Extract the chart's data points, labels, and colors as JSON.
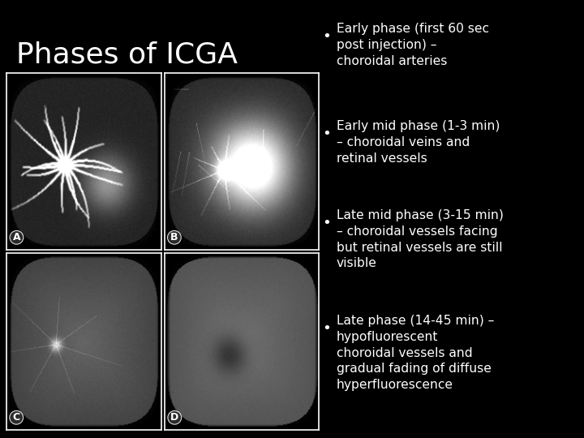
{
  "background_color": "#000000",
  "title": "Phases of ICGA",
  "title_color": "#ffffff",
  "title_fontsize": 26,
  "bullet_points": [
    "Early phase (first 60 sec\npost injection) –\nchoroidal arteries",
    "Early mid phase (1-3 min)\n– choroidal veins and\nretinal vessels",
    "Late mid phase (3-15 min)\n– choroidal vessels facing\nbut retinal vessels are still\nvisible",
    "Late phase (14-45 min) –\nhypofluorescent\nchoroidal vessels and\ngradual fading of diffuse\nhyperfluorescence"
  ],
  "bullet_color": "#ffffff",
  "bullet_fontsize": 11.2,
  "panel_labels": [
    "A",
    "B",
    "C",
    "D"
  ],
  "panel_label_color": "#ffffff",
  "panel_label_fontsize": 9
}
